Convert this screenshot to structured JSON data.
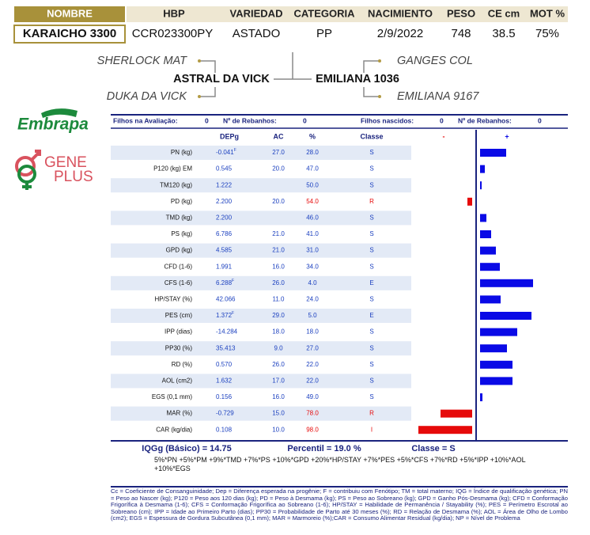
{
  "header": {
    "columns": [
      "NOMBRE",
      "HBP",
      "VARIEDAD",
      "CATEGORIA",
      "NACIMIENTO",
      "PESO",
      "CE cm",
      "MOT %"
    ],
    "values": [
      "KARAICHO 3300",
      "CCR023300PY",
      "ASTADO",
      "PP",
      "2/9/2022",
      "748",
      "38.5",
      "75%"
    ]
  },
  "pedigree": {
    "sire": "ASTRAL DA VICK",
    "sire_sire": "SHERLOCK MAT",
    "sire_dam": "DUKA DA VICK",
    "dam": "EMILIANA 1036",
    "dam_sire": "GANGES COL",
    "dam_dam": "EMILIANA 9167"
  },
  "logos": {
    "embrapa": "Embrapa",
    "geneplus_1": "GENE",
    "geneplus_2": "PLUS"
  },
  "counts": {
    "label_1": "Filhos na Avaliação:",
    "value_1": "0",
    "label_2": "Nº de Rebanhos:",
    "value_2": "0",
    "label_3": "Filhos nascidos:",
    "value_3": "0",
    "label_4": "Nº de Rebanhos:",
    "value_4": "0"
  },
  "table": {
    "columns": [
      "DEPg",
      "AC",
      "%",
      "Classe",
      "-",
      "+"
    ],
    "colors": {
      "positive": "#0a0ae6",
      "negative": "#e60a0a"
    },
    "rows": [
      {
        "name": "PN (kg)",
        "depg": "-0.041",
        "note": "F",
        "ac": "27.0",
        "pct": "28.0",
        "classe": "S",
        "bar": 33
      },
      {
        "name": "P120 (kg) EM",
        "depg": "0.545",
        "ac": "20.0",
        "pct": "47.0",
        "classe": "S",
        "bar": 6
      },
      {
        "name": "TM120 (kg)",
        "depg": "1.222",
        "ac": null,
        "pct": "50.0",
        "classe": "S",
        "bar": 2
      },
      {
        "name": "PD (kg)",
        "depg": "2.200",
        "ac": "20.0",
        "pct": "54.0",
        "classe": "R",
        "bar": -6
      },
      {
        "name": "TMD (kg)",
        "depg": "2.200",
        "ac": null,
        "pct": "46.0",
        "classe": "S",
        "bar": 8
      },
      {
        "name": "PS (kg)",
        "depg": "6.786",
        "ac": "21.0",
        "pct": "41.0",
        "classe": "S",
        "bar": 14
      },
      {
        "name": "GPD (kg)",
        "depg": "4.585",
        "ac": "21.0",
        "pct": "31.0",
        "classe": "S",
        "bar": 20
      },
      {
        "name": "CFD (1-6)",
        "depg": "1.991",
        "ac": "16.0",
        "pct": "34.0",
        "classe": "S",
        "bar": 25
      },
      {
        "name": "CFS (1-6)",
        "depg": "6.288",
        "note": "F",
        "ac": "26.0",
        "pct": "4.0",
        "classe": "E",
        "bar": 67
      },
      {
        "name": "HP/STAY (%)",
        "depg": "42.066",
        "ac": "11.0",
        "pct": "24.0",
        "classe": "S",
        "bar": 26
      },
      {
        "name": "PES (cm)",
        "depg": "1.372",
        "note": "F",
        "ac": "29.0",
        "pct": "5.0",
        "classe": "E",
        "bar": 65
      },
      {
        "name": "IPP (dias)",
        "depg": "-14.284",
        "ac": "18.0",
        "pct": "18.0",
        "classe": "S",
        "bar": 47
      },
      {
        "name": "PP30 (%)",
        "depg": "35.413",
        "ac": "9.0",
        "pct": "27.0",
        "classe": "S",
        "bar": 34
      },
      {
        "name": "RD (%)",
        "depg": "0.570",
        "ac": "26.0",
        "pct": "22.0",
        "classe": "S",
        "bar": 41
      },
      {
        "name": "AOL (cm2)",
        "depg": "1.632",
        "ac": "17.0",
        "pct": "22.0",
        "classe": "S",
        "bar": 41
      },
      {
        "name": "EGS (0,1 mm)",
        "depg": "0.156",
        "ac": "16.0",
        "pct": "49.0",
        "classe": "S",
        "bar": 3
      },
      {
        "name": "MAR (%)",
        "depg": "-0.729",
        "ac": "15.0",
        "pct": "78.0",
        "classe": "R",
        "bar": -40
      },
      {
        "name": "CAR (kg/dia)",
        "depg": "0.108",
        "ac": "10.0",
        "pct": "98.0",
        "classe": "I",
        "bar": -68
      }
    ]
  },
  "summary": {
    "iqg": "IQGg (Básico) = 14.75",
    "percentil": "Percentil = 19.0 %",
    "classe": "Classe = S",
    "formula": "5%*PN +5%*PM +9%*TMD +7%*PS +10%*GPD +20%*HP/STAY +7%*PES +5%*CFS +7%*RD +5%*IPP +10%*AOL +10%*EGS"
  },
  "footnote": "Cc = Coeficiente de Consanguinidade; Dep = Diferença esperada na progênie; F = contribuiu com Fenótipo; TM = total materno; IQG = Índice de qualificação genética; PN = Peso ao Nascer (kg); P120 = Peso aos 120 dias (kg); PD = Peso à Desmama (kg); PS = Peso ao Sobreano (kg); GPD = Ganho Pós-Desmama (kg); CFD = Conformação Frigorífica à Desmama (1-6); CFS = Conformação Frigorífica ao Sobreano (1-6); HP/STAY = Habilidade de Permanência / Stayability (%); PES = Perímetro Escrotal ao Sobreano (cm); IPP = Idade ao Primeiro Parto (dias); PP30 = Probabilidade de Parto até 30 meses (%); RD = Relação de Desmama (%); AOL = Área de Olho de Lombo (cm2); EGS = Espessura de Gordura Subcutânea (0,1 mm); MAR = Marmoreio (%);CAR = Consumo Alimentar Residual (kg/dia); NP = Nível de Problema"
}
